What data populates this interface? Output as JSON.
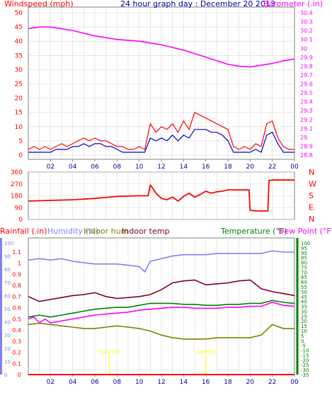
{
  "title": "24 hour graph day : December 20 2013",
  "colors": {
    "wind_speed": "#ff0000",
    "wind_gust": "#ff0000",
    "wind_avg": "#0000cc",
    "barometer": "#ff00ff",
    "direction": "#ff0000",
    "rain": "#ff0000",
    "humidity": "#8080ff",
    "indoor_hum": "#808000",
    "indoor_temp": "#800020",
    "temperature": "#008000",
    "dew_point": "#ff00ff",
    "frame": "#808080",
    "grid": "#d8d8d8",
    "title": "#0000a0",
    "sunrise": "#ffff00"
  },
  "chart_data": [
    {
      "type": "line",
      "panel": "wind-baro",
      "left_axis_label": "Windspeed (mph)",
      "right_axis_label": "Barometer (.in)",
      "left_ylim": [
        0,
        50
      ],
      "left_ticks": [
        "0",
        "5",
        "10",
        "15",
        "20",
        "25",
        "30",
        "35",
        "40",
        "45",
        "50"
      ],
      "right_ylim": [
        28.8,
        30.4
      ],
      "right_ticks": [
        "28.8",
        "28.9",
        "29",
        "29.1",
        "29.2",
        "29.3",
        "29.4",
        "29.5",
        "29.6",
        "29.7",
        "29.8",
        "29.9",
        "30",
        "30.1",
        "30.2",
        "30.3",
        "30.4"
      ],
      "x_ticks": [
        "02",
        "04",
        "06",
        "08",
        "10",
        "12",
        "14",
        "16",
        "18",
        "20",
        "22",
        "00"
      ],
      "x_hours": [
        2,
        4,
        6,
        8,
        10,
        12,
        14,
        16,
        18,
        20,
        22,
        24
      ],
      "xlim": [
        0,
        24
      ],
      "grid": true,
      "series": [
        {
          "key": "barometer",
          "axis": "right",
          "x": [
            0,
            1,
            2,
            3,
            4,
            5,
            6,
            7,
            8,
            9,
            10,
            11,
            12,
            13,
            14,
            15,
            16,
            17,
            18,
            19,
            20,
            21,
            22,
            23,
            24
          ],
          "y": [
            30.22,
            30.24,
            30.24,
            30.22,
            30.2,
            30.17,
            30.14,
            30.12,
            30.1,
            30.09,
            30.08,
            30.06,
            30.04,
            30.01,
            29.98,
            29.94,
            29.9,
            29.86,
            29.82,
            29.8,
            29.79,
            29.81,
            29.83,
            29.86,
            29.88
          ]
        },
        {
          "key": "wind_gust",
          "axis": "left",
          "x": [
            0,
            0.5,
            1,
            1.5,
            2,
            2.5,
            3,
            3.5,
            4,
            4.5,
            5,
            5.5,
            6,
            6.5,
            7,
            7.5,
            8,
            8.5,
            9,
            9.5,
            10,
            10.5,
            11,
            11.5,
            12,
            12.5,
            13,
            13.5,
            14,
            14.5,
            15,
            15.5,
            16,
            16.5,
            17,
            17.5,
            18,
            18.5,
            19,
            19.5,
            20,
            20.5,
            21,
            21.5,
            22,
            22.5,
            23,
            23.5,
            24
          ],
          "y": [
            2,
            3,
            2,
            3,
            2,
            3,
            4,
            3,
            4,
            5,
            6,
            5,
            6,
            5,
            5,
            4,
            3,
            3,
            2,
            2,
            3,
            2,
            11,
            8,
            10,
            9,
            11,
            8,
            12,
            9,
            15,
            14,
            13,
            12,
            11,
            10,
            9,
            3,
            2,
            3,
            2,
            4,
            3,
            11,
            12,
            6,
            3,
            2,
            2
          ]
        },
        {
          "key": "wind_avg",
          "axis": "left",
          "x": [
            0,
            0.5,
            1,
            1.5,
            2,
            2.5,
            3,
            3.5,
            4,
            4.5,
            5,
            5.5,
            6,
            6.5,
            7,
            7.5,
            8,
            8.5,
            9,
            9.5,
            10,
            10.5,
            11,
            11.5,
            12,
            12.5,
            13,
            13.5,
            14,
            14.5,
            15,
            15.5,
            16,
            16.5,
            17,
            17.5,
            18,
            18.5,
            19,
            19.5,
            20,
            20.5,
            21,
            21.5,
            22,
            22.5,
            23,
            23.5,
            24
          ],
          "y": [
            1,
            1,
            1,
            1,
            1,
            2,
            2,
            2,
            3,
            3,
            4,
            3,
            4,
            4,
            3,
            3,
            2,
            1,
            1,
            1,
            1,
            1,
            6,
            5,
            6,
            5,
            7,
            5,
            7,
            6,
            9,
            9,
            9,
            8,
            8,
            7,
            5,
            1,
            1,
            1,
            1,
            2,
            1,
            7,
            8,
            4,
            1,
            1,
            1
          ]
        }
      ]
    },
    {
      "type": "line",
      "panel": "direction",
      "left_ylim": [
        0,
        360
      ],
      "left_ticks": [
        "0",
        "90",
        "180",
        "270",
        "360"
      ],
      "compass_labels": [
        "N",
        "W",
        "S",
        "E",
        "N"
      ],
      "x_ticks": [
        "02",
        "04",
        "06",
        "08",
        "10",
        "12",
        "14",
        "16",
        "18",
        "20",
        "22",
        "00"
      ],
      "xlim": [
        0,
        24
      ],
      "series": [
        {
          "key": "direction",
          "axis": "left",
          "x": [
            0,
            2,
            4,
            6,
            8,
            10,
            10.8,
            11,
            11.2,
            11.5,
            12,
            12.5,
            13,
            13.5,
            14,
            14.5,
            15,
            15.5,
            16,
            16.5,
            17,
            17.5,
            18,
            18.5,
            19,
            19.9,
            20,
            20.5,
            21,
            21.6,
            21.7,
            22,
            23,
            24
          ],
          "y": [
            140,
            145,
            150,
            160,
            175,
            180,
            180,
            260,
            240,
            200,
            160,
            150,
            170,
            140,
            175,
            200,
            170,
            190,
            215,
            200,
            210,
            215,
            225,
            225,
            225,
            225,
            70,
            65,
            65,
            65,
            295,
            300,
            300,
            300
          ]
        }
      ]
    },
    {
      "type": "line",
      "panel": "rain-hum-temp",
      "legend": [
        "Rainfall (.in)",
        "Humidity (%)",
        "Indoor hum",
        "Indoor temp",
        "Temperature (°F)",
        "Dew Point (°F)"
      ],
      "rain_ylim": [
        0,
        1.0
      ],
      "rain_ticks": [
        "0",
        "0.1",
        "0.2",
        "0.3",
        "0.4",
        "0.5",
        "0.6",
        "0.7",
        "0.8",
        "0.9",
        "1",
        "1.1"
      ],
      "hum_ylim": [
        0,
        100
      ],
      "hum_ticks": [
        "0",
        "10",
        "20",
        "30",
        "40",
        "50",
        "60",
        "70",
        "80",
        "90",
        "100"
      ],
      "temp_ylim": [
        -35,
        100
      ],
      "temp_ticks": [
        "-35",
        "-30",
        "-25",
        "-20",
        "-15",
        "-10",
        "-5",
        "0",
        "5",
        "10",
        "15",
        "20",
        "25",
        "30",
        "35",
        "40",
        "45",
        "50",
        "55",
        "60",
        "65",
        "70",
        "75",
        "80",
        "85",
        "90",
        "95",
        "100"
      ],
      "x_ticks": [
        "02",
        "04",
        "06",
        "08",
        "10",
        "12",
        "14",
        "16",
        "18",
        "20",
        "22",
        "00"
      ],
      "xlim": [
        0,
        24
      ],
      "annotations": [
        {
          "text": "Sunrise",
          "x": 7.3
        },
        {
          "text": "Sunset",
          "x": 16.0
        }
      ],
      "series": [
        {
          "key": "humidity",
          "axis": "hum",
          "x": [
            0,
            1,
            2,
            3,
            4,
            5,
            6,
            7,
            8,
            9,
            10,
            10.5,
            11,
            12,
            13,
            14,
            15,
            16,
            17,
            18,
            19,
            20,
            21,
            22,
            23,
            24
          ],
          "y": [
            87,
            88,
            87,
            88,
            86,
            85,
            84,
            84,
            84,
            83,
            82,
            78,
            86,
            88,
            90,
            91,
            91,
            91,
            92,
            92,
            92,
            92,
            92,
            94,
            93,
            93
          ]
        },
        {
          "key": "indoor_hum",
          "axis": "hum",
          "x": [
            0,
            1,
            2,
            3,
            4,
            5,
            6,
            7,
            8,
            9,
            10,
            11,
            12,
            13,
            14,
            15,
            16,
            17,
            18,
            19,
            20,
            21,
            22,
            23,
            24
          ],
          "y": [
            38,
            39,
            38,
            37,
            36,
            35,
            35,
            36,
            37,
            36,
            35,
            33,
            30,
            28,
            27,
            27,
            27,
            28,
            28,
            28,
            28,
            30,
            38,
            35,
            35
          ]
        },
        {
          "key": "rain",
          "axis": "rain",
          "x": [
            0,
            24
          ],
          "y": [
            0,
            0
          ]
        },
        {
          "key": "indoor_temp",
          "axis": "temp",
          "x": [
            0,
            1,
            2,
            3,
            4,
            5,
            6,
            7,
            8,
            9,
            10,
            11,
            12,
            13,
            14,
            15,
            16,
            17,
            18,
            19,
            20,
            21,
            22,
            23,
            24
          ],
          "y": [
            45,
            40,
            42,
            44,
            46,
            47,
            49,
            45,
            43,
            44,
            45,
            47,
            52,
            59,
            61,
            62,
            57,
            58,
            59,
            61,
            62,
            53,
            50,
            48,
            46
          ]
        },
        {
          "key": "temperature",
          "axis": "temp",
          "x": [
            0,
            1,
            2,
            3,
            4,
            5,
            6,
            7,
            8,
            9,
            10,
            11,
            12,
            13,
            14,
            15,
            16,
            17,
            18,
            19,
            20,
            21,
            22,
            23,
            24
          ],
          "y": [
            24,
            26,
            24,
            26,
            28,
            30,
            32,
            33,
            34,
            34,
            36,
            38,
            38,
            38,
            37,
            37,
            36,
            36,
            37,
            37,
            38,
            38,
            41,
            39,
            38
          ]
        },
        {
          "key": "dew_point",
          "axis": "temp",
          "x": [
            0,
            0.5,
            1,
            1.5,
            2,
            3,
            4,
            5,
            6,
            7,
            8,
            9,
            10,
            11,
            12,
            13,
            14,
            15,
            16,
            17,
            18,
            19,
            20,
            21,
            22,
            23,
            24
          ],
          "y": [
            22,
            24,
            18,
            22,
            18,
            20,
            22,
            24,
            26,
            27,
            28,
            29,
            31,
            32,
            33,
            34,
            34,
            33,
            33,
            33,
            34,
            34,
            35,
            35,
            39,
            36,
            35
          ]
        }
      ]
    }
  ]
}
